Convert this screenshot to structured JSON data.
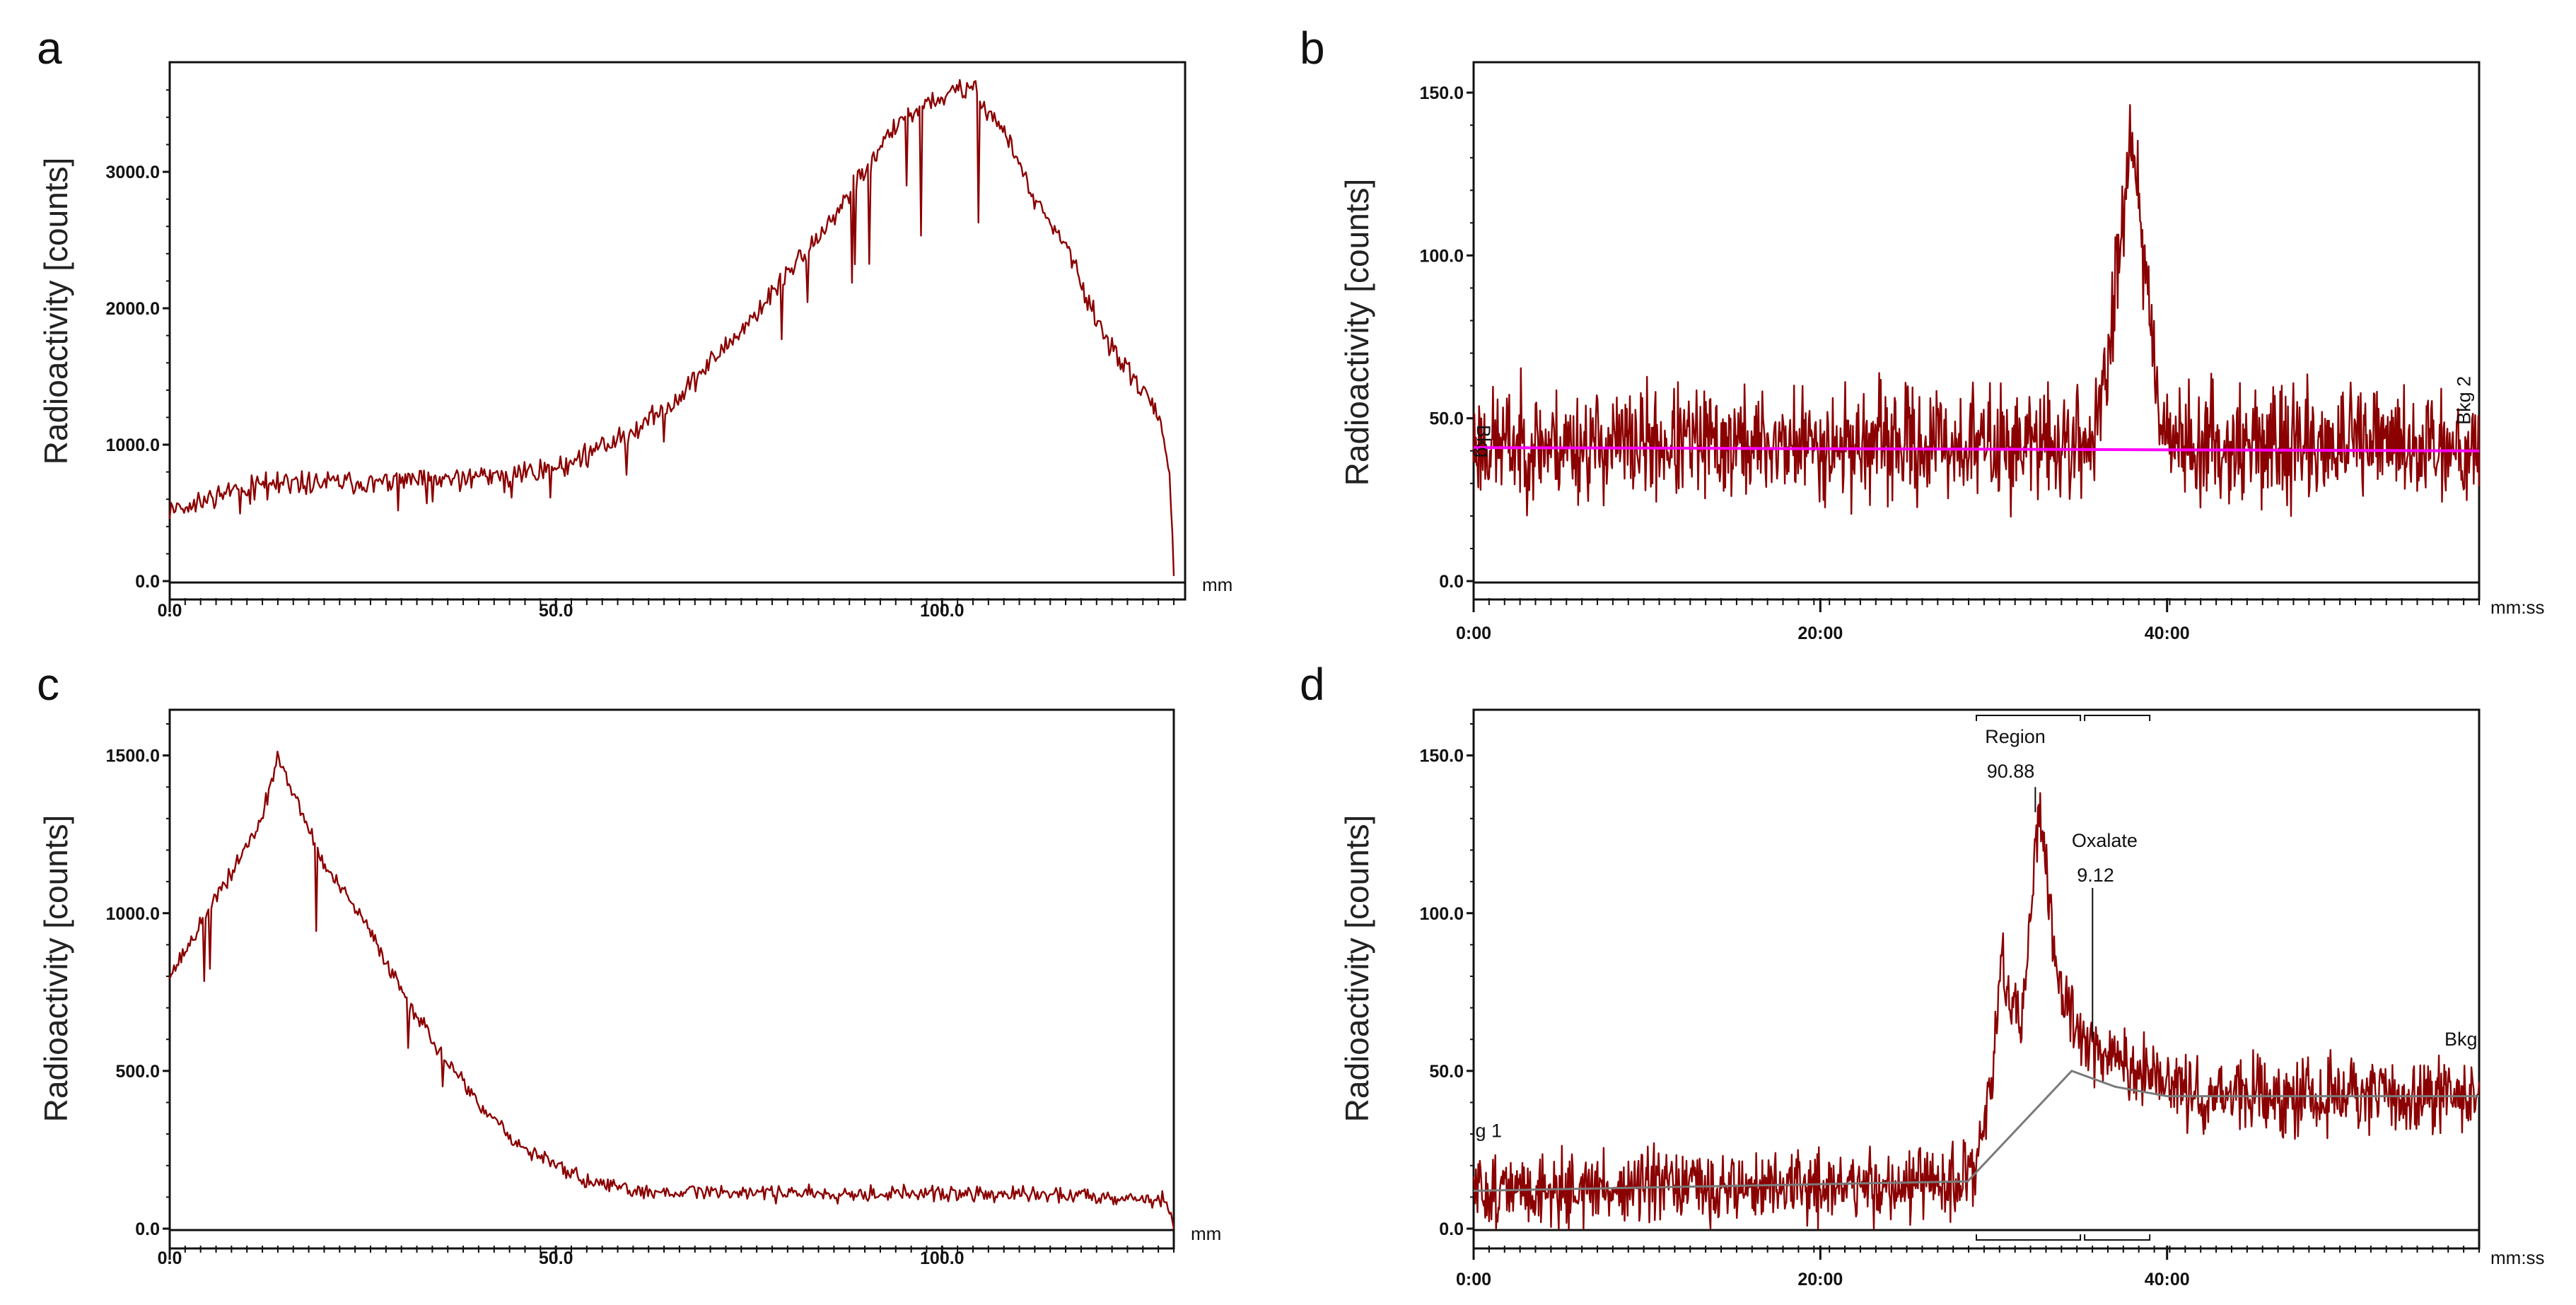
{
  "colors": {
    "trace": "#8b0000",
    "trace_dark": "#3a0000",
    "baseline_b": "#ff00ff",
    "baseline_d": "#7a7a7a",
    "frame": "#111111"
  },
  "chart_data": [
    {
      "panel": "a",
      "type": "line",
      "ylabel": "Radioactivity [counts]",
      "xunit": "mm",
      "xlim": [
        0,
        130
      ],
      "ylim": [
        0,
        3700
      ],
      "xticks": [
        "0.0",
        "50.0",
        "100.0"
      ],
      "xtick_values": [
        0,
        50,
        100
      ],
      "yticks": [
        "0.0",
        "1000.0",
        "2000.0",
        "3000.0"
      ],
      "ytick_values": [
        0,
        1000,
        2000,
        3000
      ],
      "profile": [
        [
          0,
          520
        ],
        [
          10,
          700
        ],
        [
          20,
          720
        ],
        [
          30,
          730
        ],
        [
          40,
          760
        ],
        [
          50,
          830
        ],
        [
          55,
          950
        ],
        [
          60,
          1100
        ],
        [
          65,
          1300
        ],
        [
          70,
          1600
        ],
        [
          75,
          1900
        ],
        [
          80,
          2250
        ],
        [
          85,
          2600
        ],
        [
          90,
          3000
        ],
        [
          95,
          3400
        ],
        [
          100,
          3550
        ],
        [
          104,
          3620
        ],
        [
          108,
          3300
        ],
        [
          112,
          2800
        ],
        [
          116,
          2450
        ],
        [
          120,
          1900
        ],
        [
          125,
          1450
        ],
        [
          128,
          1250
        ],
        [
          129.5,
          800
        ],
        [
          130,
          0
        ]
      ],
      "noise": 60,
      "spikes": 25,
      "seed": 11,
      "npts": 700
    },
    {
      "panel": "b",
      "type": "line",
      "ylabel": "Radioactivity [counts]",
      "xunit": "mm:ss",
      "xlim": [
        0,
        58
      ],
      "ylim": [
        0,
        155
      ],
      "xticks": [
        "0:00",
        "20:00",
        "40:00"
      ],
      "xtick_values": [
        0,
        20,
        40
      ],
      "yticks": [
        "0.0",
        "50.0",
        "100.0",
        "150.0"
      ],
      "ytick_values": [
        0,
        50,
        100,
        150
      ],
      "profile": [
        [
          0,
          42
        ],
        [
          35.5,
          42
        ],
        [
          36.5,
          60
        ],
        [
          37.5,
          120
        ],
        [
          38,
          140
        ],
        [
          38.5,
          110
        ],
        [
          39.5,
          55
        ],
        [
          40.5,
          42
        ],
        [
          58,
          42
        ]
      ],
      "noise": 12,
      "spikes": 0,
      "seed": 23,
      "npts": 1300,
      "baseline": [
        [
          0,
          41
        ],
        [
          58,
          40
        ]
      ],
      "labels": [
        {
          "text": "Bkg",
          "x": 0.2,
          "y": 48,
          "rotate": 90
        },
        {
          "text": "Bkg 2",
          "x": 57.5,
          "y": 48,
          "rotate": -90
        }
      ]
    },
    {
      "panel": "c",
      "type": "line",
      "ylabel": "Radioactivity [counts]",
      "xunit": "mm",
      "xlim": [
        0,
        130
      ],
      "ylim": [
        0,
        1600
      ],
      "xticks": [
        "0.0",
        "50.0",
        "100.0"
      ],
      "xtick_values": [
        0,
        50,
        100
      ],
      "yticks": [
        "0.0",
        "500.0",
        "1000.0",
        "1500.0"
      ],
      "ytick_values": [
        0,
        500,
        1000,
        1500
      ],
      "profile": [
        [
          0,
          800
        ],
        [
          3,
          920
        ],
        [
          8,
          1130
        ],
        [
          12,
          1300
        ],
        [
          14,
          1500
        ],
        [
          16,
          1380
        ],
        [
          20,
          1150
        ],
        [
          25,
          980
        ],
        [
          30,
          760
        ],
        [
          35,
          560
        ],
        [
          40,
          390
        ],
        [
          45,
          270
        ],
        [
          50,
          200
        ],
        [
          55,
          140
        ],
        [
          60,
          120
        ],
        [
          80,
          115
        ],
        [
          100,
          110
        ],
        [
          120,
          105
        ],
        [
          129,
          90
        ],
        [
          130,
          0
        ]
      ],
      "noise": 18,
      "spikes": 6,
      "seed": 37,
      "npts": 700
    },
    {
      "panel": "d",
      "type": "line",
      "ylabel": "Radioactivity [counts]",
      "xunit": "mm:ss",
      "xlim": [
        0,
        58
      ],
      "ylim": [
        0,
        160
      ],
      "xticks": [
        "0:00",
        "20:00",
        "40:00"
      ],
      "xtick_values": [
        0,
        20,
        40
      ],
      "yticks": [
        "0.0",
        "50.0",
        "100.0",
        "150.0"
      ],
      "ytick_values": [
        0,
        50,
        100,
        150
      ],
      "profile": [
        [
          0,
          12
        ],
        [
          28,
          14
        ],
        [
          29,
          20
        ],
        [
          29.8,
          45
        ],
        [
          30.5,
          85
        ],
        [
          31,
          70
        ],
        [
          31.6,
          60
        ],
        [
          32.1,
          100
        ],
        [
          32.6,
          130
        ],
        [
          33.1,
          110
        ],
        [
          33.8,
          75
        ],
        [
          34.8,
          63
        ],
        [
          36,
          58
        ],
        [
          38,
          50
        ],
        [
          40,
          45
        ],
        [
          43,
          42
        ],
        [
          58,
          42
        ]
      ],
      "noise": 8,
      "spikes": 0,
      "seed": 51,
      "npts": 1300,
      "baseline": [
        [
          0,
          12
        ],
        [
          28.5,
          15
        ],
        [
          34.5,
          50
        ],
        [
          37,
          45
        ],
        [
          40,
          42
        ],
        [
          58,
          42
        ]
      ],
      "labels": [
        {
          "text": "Region",
          "x": 29.5,
          "y": 154,
          "rotate": 0
        },
        {
          "text": "90.88",
          "x": 29.6,
          "y": 143,
          "rotate": 0
        },
        {
          "text": "Oxalate",
          "x": 34.5,
          "y": 121,
          "rotate": 0
        },
        {
          "text": "9.12",
          "x": 34.8,
          "y": 110,
          "rotate": 0
        },
        {
          "text": "Bkg",
          "x": 56,
          "y": 58,
          "rotate": 0
        },
        {
          "text": "g 1",
          "x": 0.1,
          "y": 29,
          "rotate": 0
        }
      ]
    }
  ]
}
